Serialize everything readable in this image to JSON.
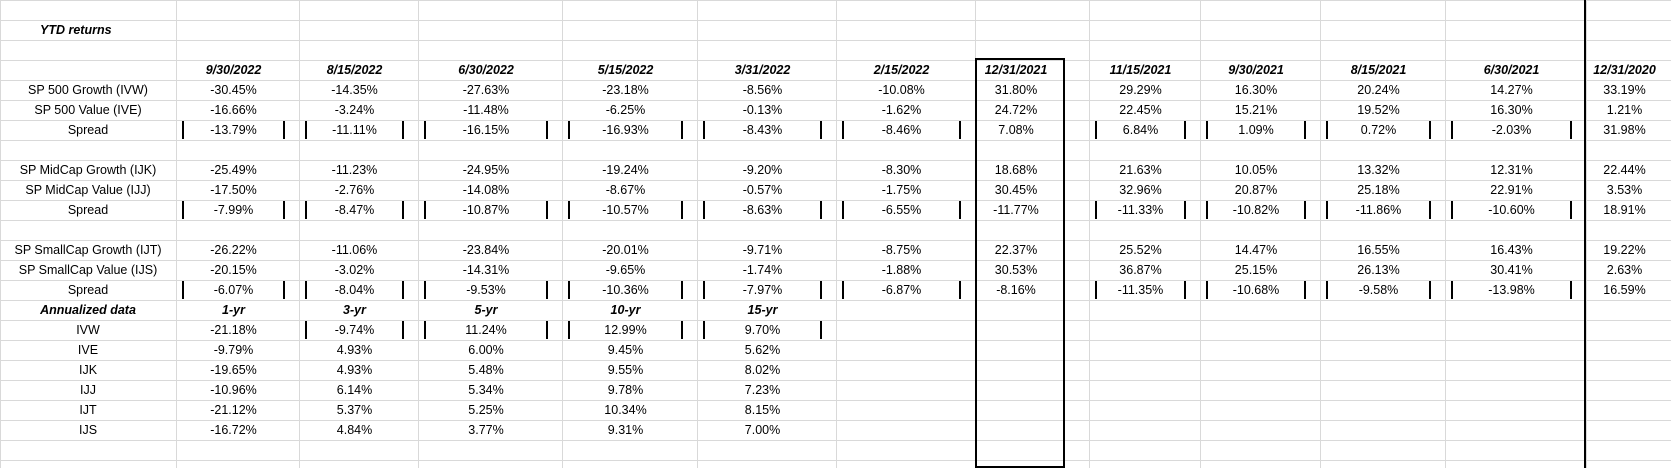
{
  "title": "YTD returns",
  "dates": [
    "9/30/2022",
    "8/15/2022",
    "6/30/2022",
    "5/15/2022",
    "3/31/2022",
    "2/15/2022",
    "12/31/2021",
    "11/15/2021",
    "9/30/2021",
    "8/15/2021",
    "6/30/2021",
    "12/31/2020"
  ],
  "groups": [
    {
      "rows": [
        {
          "label": "SP 500 Growth (IVW)",
          "values": [
            "-30.45%",
            "-14.35%",
            "-27.63%",
            "-23.18%",
            "-8.56%",
            "-10.08%",
            "31.80%",
            "29.29%",
            "16.30%",
            "20.24%",
            "14.27%",
            "33.19%"
          ]
        },
        {
          "label": "SP 500 Value (IVE)",
          "values": [
            "-16.66%",
            "-3.24%",
            "-11.48%",
            "-6.25%",
            "-0.13%",
            "-1.62%",
            "24.72%",
            "22.45%",
            "15.21%",
            "19.52%",
            "16.30%",
            "1.21%"
          ]
        },
        {
          "label": "Spread",
          "values": [
            "-13.79%",
            "-11.11%",
            "-16.15%",
            "-16.93%",
            "-8.43%",
            "-8.46%",
            "7.08%",
            "6.84%",
            "1.09%",
            "0.72%",
            "-2.03%",
            "31.98%"
          ]
        }
      ]
    },
    {
      "rows": [
        {
          "label": "SP MidCap Growth (IJK)",
          "values": [
            "-25.49%",
            "-11.23%",
            "-24.95%",
            "-19.24%",
            "-9.20%",
            "-8.30%",
            "18.68%",
            "21.63%",
            "10.05%",
            "13.32%",
            "12.31%",
            "22.44%"
          ]
        },
        {
          "label": "SP MidCap Value (IJJ)",
          "values": [
            "-17.50%",
            "-2.76%",
            "-14.08%",
            "-8.67%",
            "-0.57%",
            "-1.75%",
            "30.45%",
            "32.96%",
            "20.87%",
            "25.18%",
            "22.91%",
            "3.53%"
          ]
        },
        {
          "label": "Spread",
          "values": [
            "-7.99%",
            "-8.47%",
            "-10.87%",
            "-10.57%",
            "-8.63%",
            "-6.55%",
            "-11.77%",
            "-11.33%",
            "-10.82%",
            "-11.86%",
            "-10.60%",
            "18.91%"
          ]
        }
      ]
    },
    {
      "rows": [
        {
          "label": "SP SmallCap Growth (IJT)",
          "values": [
            "-26.22%",
            "-11.06%",
            "-23.84%",
            "-20.01%",
            "-9.71%",
            "-8.75%",
            "22.37%",
            "25.52%",
            "14.47%",
            "16.55%",
            "16.43%",
            "19.22%"
          ]
        },
        {
          "label": "SP SmallCap Value (IJS)",
          "values": [
            "-20.15%",
            "-3.02%",
            "-14.31%",
            "-9.65%",
            "-1.74%",
            "-1.88%",
            "30.53%",
            "36.87%",
            "25.15%",
            "26.13%",
            "30.41%",
            "2.63%"
          ]
        },
        {
          "label": "Spread",
          "values": [
            "-6.07%",
            "-8.04%",
            "-9.53%",
            "-10.36%",
            "-7.97%",
            "-6.87%",
            "-8.16%",
            "-11.35%",
            "-10.68%",
            "-9.58%",
            "-13.98%",
            "16.59%"
          ]
        }
      ]
    }
  ],
  "annualized": {
    "title": "Annualized data",
    "headers": [
      "1-yr",
      "3-yr",
      "5-yr",
      "10-yr",
      "15-yr"
    ],
    "rows": [
      {
        "label": "IVW",
        "values": [
          "-21.18%",
          "-9.74%",
          "11.24%",
          "12.99%",
          "9.70%"
        ]
      },
      {
        "label": "IVE",
        "values": [
          "-9.79%",
          "4.93%",
          "6.00%",
          "9.45%",
          "5.62%"
        ]
      },
      {
        "label": "IJK",
        "values": [
          "-19.65%",
          "4.93%",
          "5.48%",
          "9.55%",
          "8.02%"
        ]
      },
      {
        "label": "IJJ",
        "values": [
          "-10.96%",
          "6.14%",
          "5.34%",
          "9.78%",
          "7.23%"
        ]
      },
      {
        "label": "IJT",
        "values": [
          "-21.12%",
          "5.37%",
          "5.25%",
          "10.34%",
          "8.15%"
        ]
      },
      {
        "label": "IJS",
        "values": [
          "-16.72%",
          "4.84%",
          "3.77%",
          "9.31%",
          "7.00%"
        ]
      }
    ]
  }
}
